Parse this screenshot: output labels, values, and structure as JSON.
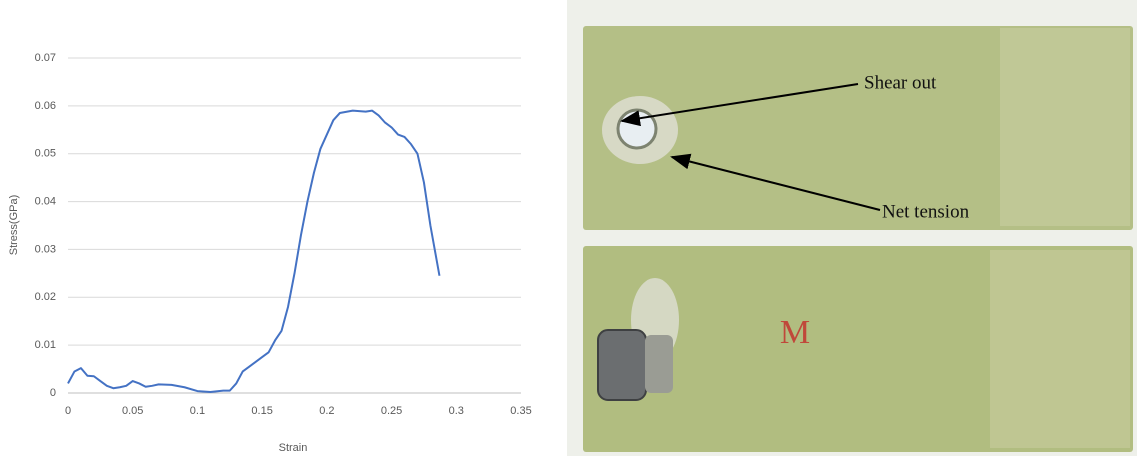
{
  "chart_data": {
    "type": "line",
    "x_label": "Strain",
    "y_label": "Stress(GPa)",
    "x": [
      0,
      0.005,
      0.01,
      0.015,
      0.02,
      0.025,
      0.03,
      0.035,
      0.04,
      0.045,
      0.05,
      0.055,
      0.06,
      0.065,
      0.07,
      0.08,
      0.09,
      0.1,
      0.11,
      0.12,
      0.125,
      0.13,
      0.135,
      0.14,
      0.15,
      0.155,
      0.16,
      0.165,
      0.17,
      0.175,
      0.18,
      0.185,
      0.19,
      0.195,
      0.2,
      0.205,
      0.21,
      0.22,
      0.23,
      0.235,
      0.24,
      0.245,
      0.25,
      0.255,
      0.26,
      0.265,
      0.27,
      0.275,
      0.28,
      0.287
    ],
    "series": [
      {
        "color": "#4472c4",
        "values": [
          0.002,
          0.0045,
          0.0052,
          0.0036,
          0.0035,
          0.0025,
          0.0015,
          0.001,
          0.0012,
          0.0015,
          0.0025,
          0.002,
          0.0013,
          0.0015,
          0.0018,
          0.0017,
          0.0012,
          0.0004,
          0.0002,
          0.0005,
          0.0005,
          0.002,
          0.0045,
          0.0055,
          0.0075,
          0.0085,
          0.011,
          0.013,
          0.018,
          0.025,
          0.033,
          0.04,
          0.046,
          0.051,
          0.054,
          0.057,
          0.0585,
          0.059,
          0.0588,
          0.059,
          0.058,
          0.0565,
          0.0555,
          0.054,
          0.0535,
          0.052,
          0.05,
          0.044,
          0.035,
          0.0245
        ]
      }
    ],
    "xlim": [
      0,
      0.35
    ],
    "xticks": [
      0,
      0.05,
      0.1,
      0.15,
      0.2,
      0.25,
      0.3,
      0.35
    ],
    "ylim": [
      0,
      0.07
    ],
    "yticks": [
      0,
      0.01,
      0.02,
      0.03,
      0.04,
      0.05,
      0.06,
      0.07
    ],
    "grid": true
  },
  "photo": {
    "annotations": [
      "Shear out",
      "Net tension"
    ],
    "marking": "M"
  }
}
